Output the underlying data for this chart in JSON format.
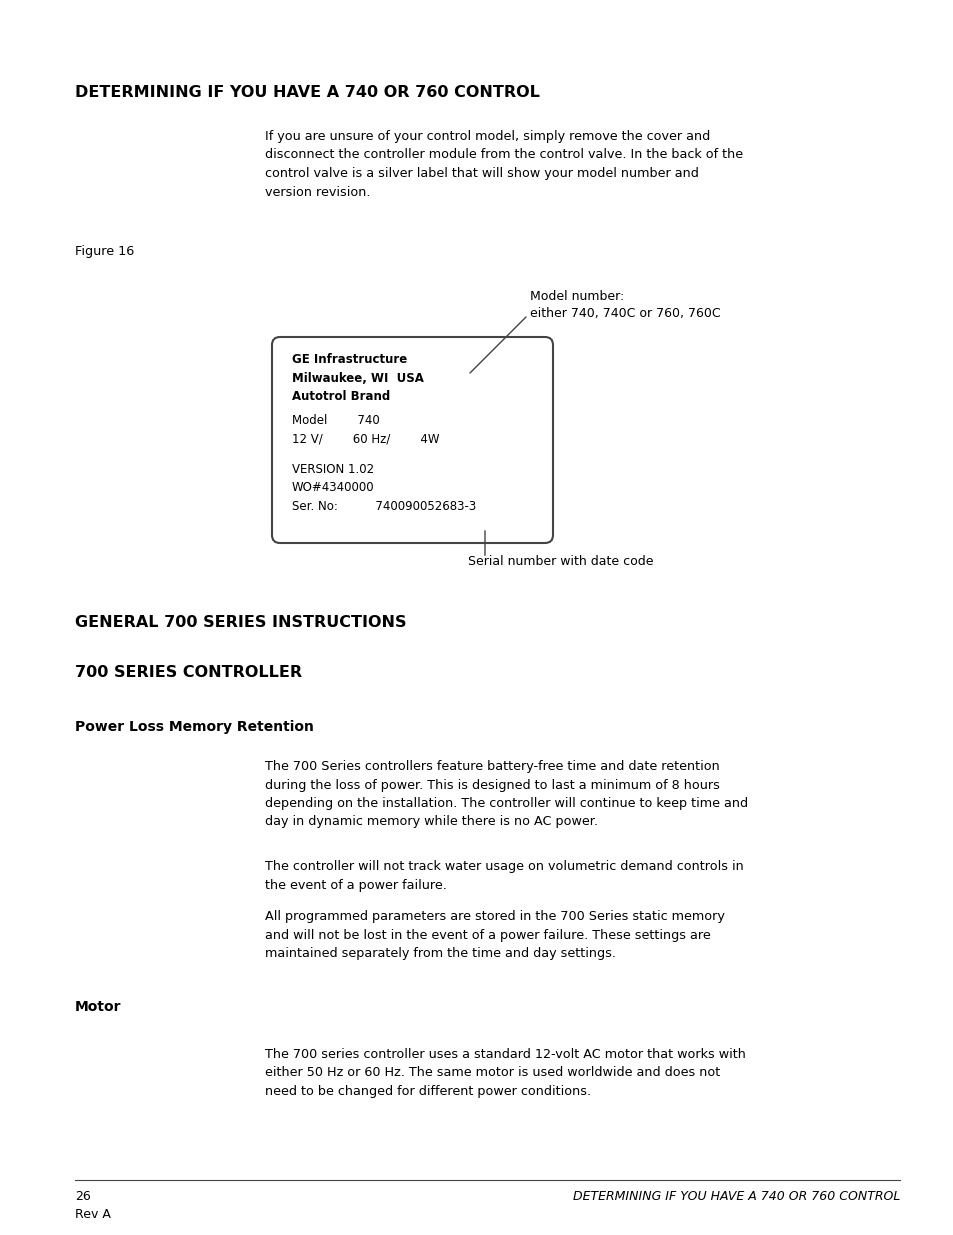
{
  "bg_color": "#ffffff",
  "section1_title": "DETERMINING IF YOU HAVE A 740 OR 760 CONTROL",
  "section2_title": "GENERAL 700 SERIES INSTRUCTIONS",
  "section3_title": "700 SERIES CONTROLLER",
  "subsec1_title": "Power Loss Memory Retention",
  "subsec2_title": "Motor",
  "intro_text": "If you are unsure of your control model, simply remove the cover and\ndisconnect the controller module from the control valve. In the back of the\ncontrol valve is a silver label that will show your model number and\nversion revision.",
  "figure_label": "Figure 16",
  "label_line1": "GE Infrastructure",
  "label_line2": "Milwaukee, WI  USA",
  "label_line3": "Autotrol Brand",
  "label_line4": "Model        740",
  "label_line5": "12 V/        60 Hz/        4W",
  "label_line6": "VERSION 1.02",
  "label_line7": "WO#4340000",
  "label_line8": "Ser. No:          740090052683-3",
  "model_annot_text": "Model number:\neither 740, 740C or 760, 760C",
  "serial_annot_text": "Serial number with date code",
  "para1_text": "The 700 Series controllers feature battery-free time and date retention\nduring the loss of power. This is designed to last a minimum of 8 hours\ndepending on the installation. The controller will continue to keep time and\nday in dynamic memory while there is no AC power.",
  "para2_text": "The controller will not track water usage on volumetric demand controls in\nthe event of a power failure.",
  "para3_text": "All programmed parameters are stored in the 700 Series static memory\nand will not be lost in the event of a power failure. These settings are\nmaintained separately from the time and day settings.",
  "para4_text": "The 700 series controller uses a standard 12-volt AC motor that works with\neither 50 Hz or 60 Hz. The same motor is used worldwide and does not\nneed to be changed for different power conditions.",
  "footer_page": "26\nRev A",
  "footer_title_italic": "DETERMINING IF YOU HAVE A 740 OR 760 CONTROL"
}
